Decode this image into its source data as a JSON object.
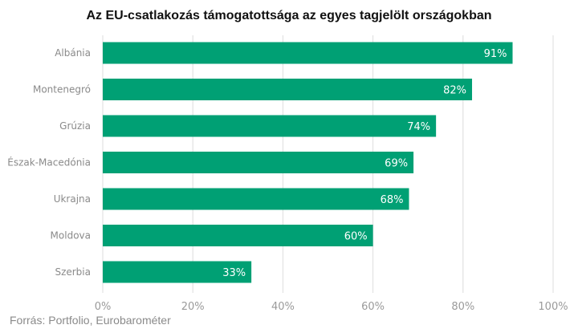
{
  "chart_data": {
    "type": "bar",
    "orientation": "horizontal",
    "title": "Az EU-csatlakozás támogatottsága az egyes tagjelölt országokban",
    "categories": [
      "Albánia",
      "Montenegró",
      "Grúzia",
      "Észak-Macedónia",
      "Ukrajna",
      "Moldova",
      "Szerbia"
    ],
    "values": [
      91,
      82,
      74,
      69,
      68,
      60,
      33
    ],
    "value_labels": [
      "91%",
      "82%",
      "74%",
      "69%",
      "68%",
      "60%",
      "33%"
    ],
    "xlim": [
      0,
      100
    ],
    "xticks": [
      0,
      20,
      40,
      60,
      80,
      100
    ],
    "xtick_labels": [
      "0%",
      "20%",
      "40%",
      "60%",
      "80%",
      "100%"
    ],
    "grid": "vertical",
    "bar_color": "#00a074",
    "source": "Forrás: Portfolio, Eurobarométer"
  }
}
